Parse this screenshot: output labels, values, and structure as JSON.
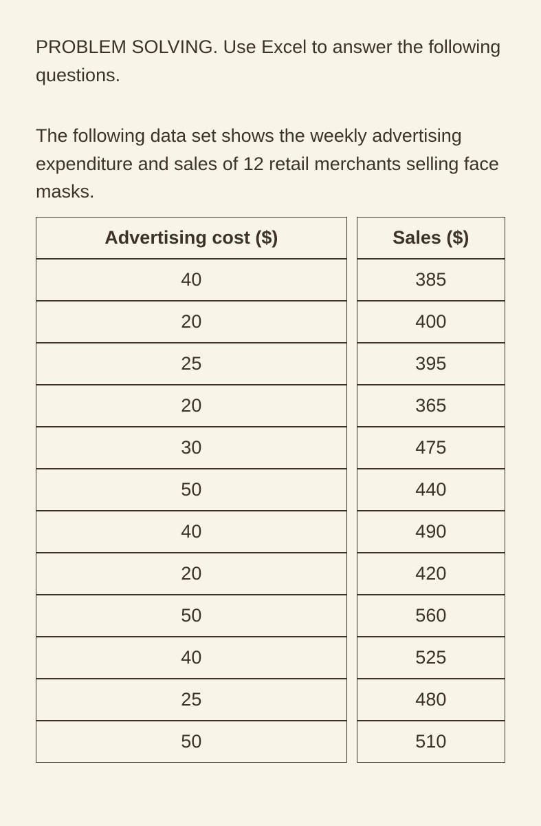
{
  "heading": "PROBLEM SOLVING. Use Excel to answer the following questions.",
  "description": "The following data set shows the weekly advertising expenditure and sales of 12 retail merchants selling face masks.",
  "table": {
    "columns": [
      "Advertising cost ($)",
      "Sales ($)"
    ],
    "rows": [
      [
        "40",
        "385"
      ],
      [
        "20",
        "400"
      ],
      [
        "25",
        "395"
      ],
      [
        "20",
        "365"
      ],
      [
        "30",
        "475"
      ],
      [
        "50",
        "440"
      ],
      [
        "40",
        "490"
      ],
      [
        "20",
        "420"
      ],
      [
        "50",
        "560"
      ],
      [
        "40",
        "525"
      ],
      [
        "25",
        "480"
      ],
      [
        "50",
        "510"
      ]
    ],
    "border_color": "#3d3228",
    "background_color": "#f8f5e8",
    "text_color": "#3d3228",
    "header_fontsize": 27,
    "cell_fontsize": 27
  }
}
